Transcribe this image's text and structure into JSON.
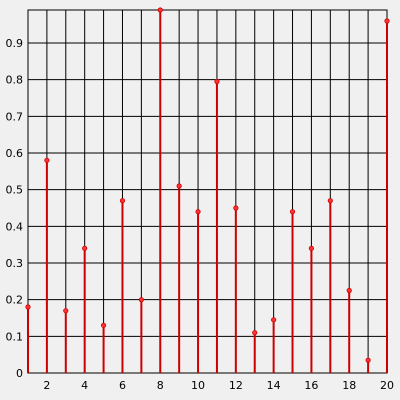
{
  "chart_data": {
    "type": "stem",
    "color": "#cc0000",
    "x": [
      1,
      2,
      3,
      4,
      5,
      6,
      7,
      8,
      9,
      10,
      11,
      12,
      13,
      14,
      15,
      16,
      17,
      18,
      19,
      20
    ],
    "values": [
      0.18,
      0.58,
      0.17,
      0.34,
      0.13,
      0.47,
      0.2,
      0.99,
      0.51,
      0.44,
      0.795,
      0.45,
      0.11,
      0.145,
      0.44,
      0.34,
      0.47,
      0.225,
      0.035,
      0.96
    ],
    "xlim": [
      1,
      20
    ],
    "ylim": [
      0,
      0.99
    ],
    "xticks": [
      2,
      4,
      6,
      8,
      10,
      12,
      14,
      16,
      18,
      20
    ],
    "xminorticks": [
      1,
      3,
      5,
      7,
      9,
      11,
      13,
      15,
      17,
      19
    ],
    "yticks": [
      0,
      0.1,
      0.2,
      0.3,
      0.4,
      0.5,
      0.6,
      0.7,
      0.8,
      0.9
    ],
    "grid": true
  }
}
